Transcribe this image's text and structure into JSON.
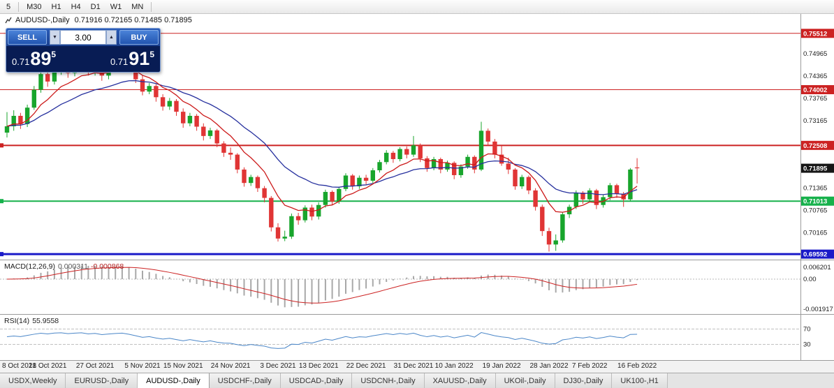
{
  "toolbar": {
    "timeframes": [
      "5",
      "M30",
      "H1",
      "H4",
      "D1",
      "W1",
      "MN"
    ]
  },
  "chart": {
    "header_symbol": "AUDUSD-,Daily",
    "header_ohlc": "0.71916 0.72165 0.71485 0.71895"
  },
  "trade_panel": {
    "sell_label": "SELL",
    "buy_label": "BUY",
    "volume": "3.00",
    "bid_prefix": "0.71",
    "bid_big": "89",
    "bid_sup": "5",
    "ask_prefix": "0.71",
    "ask_big": "91",
    "ask_sup": "5"
  },
  "macd_panel": {
    "label": "MACD(12,26,9)",
    "value_main": "0.000311",
    "value_signal": "-0.000868"
  },
  "rsi_panel": {
    "label": "RSI(14)",
    "value": "55.9558"
  },
  "tabs": {
    "active_index": 2,
    "items": [
      "USDX,Weekly",
      "EURUSD-,Daily",
      "AUDUSD-,Daily",
      "USDCHF-,Daily",
      "USDCAD-,Daily",
      "USDCNH-,Daily",
      "XAUUSD-,Daily",
      "UKOil-,Daily",
      "DJ30-,Daily",
      "UK100-,H1"
    ]
  },
  "chart_data": {
    "type": "candlestick",
    "symbol": "AUDUSD-",
    "timeframe": "Daily",
    "price_range": [
      0.6952,
      0.7592
    ],
    "up_color": "#18a52c",
    "down_color": "#e03535",
    "ma_fast": {
      "period": 8,
      "color": "#cc1a1a"
    },
    "ma_slow": {
      "period": 20,
      "color": "#26309e"
    },
    "current_price": {
      "value": 0.71895,
      "label": "0.71895",
      "badge_color": "#161616"
    },
    "price_ticks": [
      0.74965,
      0.74365,
      0.73765,
      0.73165,
      0.71365,
      0.70765,
      0.70165
    ],
    "hlines": [
      {
        "price": 0.75512,
        "color": "#cc2222",
        "width": 1
      },
      {
        "price": 0.74002,
        "color": "#cc2222",
        "width": 1
      },
      {
        "price": 0.72508,
        "color": "#cc2222",
        "width": 2
      },
      {
        "price": 0.71013,
        "color": "#16b14b",
        "width": 2
      },
      {
        "price": 0.69592,
        "color": "#1a1ac8",
        "width": 3
      }
    ],
    "macd": {
      "fast": 12,
      "slow": 26,
      "signal": 9,
      "hist_color": "#a8a8a8",
      "signal_color": "#cc2222",
      "axis_labels": [
        "0.006201",
        "0.00",
        "-0.001917"
      ]
    },
    "rsi": {
      "period": 14,
      "color": "#4a86c8",
      "levels": [
        70,
        30
      ]
    },
    "date_ticks": [
      {
        "i": 0,
        "label": "8 Oct 2021"
      },
      {
        "i": 6,
        "label": "18 Oct 2021"
      },
      {
        "i": 13,
        "label": "27 Oct 2021"
      },
      {
        "i": 20,
        "label": "5 Nov 2021"
      },
      {
        "i": 26,
        "label": "15 Nov 2021"
      },
      {
        "i": 33,
        "label": "24 Nov 2021"
      },
      {
        "i": 40,
        "label": "3 Dec 2021"
      },
      {
        "i": 46,
        "label": "13 Dec 2021"
      },
      {
        "i": 53,
        "label": "22 Dec 2021"
      },
      {
        "i": 60,
        "label": "31 Dec 2021"
      },
      {
        "i": 66,
        "label": "10 Jan 2022"
      },
      {
        "i": 73,
        "label": "19 Jan 2022"
      },
      {
        "i": 80,
        "label": "28 Jan 2022"
      },
      {
        "i": 86,
        "label": "7 Feb 2022"
      },
      {
        "i": 93,
        "label": "16 Feb 2022"
      }
    ],
    "candles": [
      [
        0.7285,
        0.734,
        0.7272,
        0.7302
      ],
      [
        0.7302,
        0.7345,
        0.729,
        0.733
      ],
      [
        0.733,
        0.7338,
        0.7295,
        0.7308
      ],
      [
        0.7308,
        0.736,
        0.73,
        0.7352
      ],
      [
        0.7352,
        0.741,
        0.7346,
        0.74
      ],
      [
        0.74,
        0.745,
        0.7392,
        0.7442
      ],
      [
        0.7442,
        0.7455,
        0.7408,
        0.7422
      ],
      [
        0.7422,
        0.7465,
        0.7414,
        0.7455
      ],
      [
        0.7455,
        0.748,
        0.744,
        0.7468
      ],
      [
        0.7468,
        0.7475,
        0.7432,
        0.7445
      ],
      [
        0.7445,
        0.7472,
        0.7436,
        0.7462
      ],
      [
        0.7462,
        0.7483,
        0.7452,
        0.7475
      ],
      [
        0.7475,
        0.748,
        0.7438,
        0.745
      ],
      [
        0.745,
        0.747,
        0.7438,
        0.7464
      ],
      [
        0.7464,
        0.7468,
        0.7424,
        0.7438
      ],
      [
        0.7438,
        0.7462,
        0.7428,
        0.7455
      ],
      [
        0.7455,
        0.7478,
        0.7446,
        0.747
      ],
      [
        0.747,
        0.7485,
        0.7458,
        0.7479
      ],
      [
        0.7479,
        0.7482,
        0.7446,
        0.7458
      ],
      [
        0.7458,
        0.7465,
        0.7418,
        0.7428
      ],
      [
        0.7428,
        0.7438,
        0.7385,
        0.7395
      ],
      [
        0.7395,
        0.7418,
        0.7388,
        0.741
      ],
      [
        0.741,
        0.7415,
        0.7368,
        0.738
      ],
      [
        0.738,
        0.7388,
        0.7344,
        0.7355
      ],
      [
        0.7355,
        0.7378,
        0.7346,
        0.737
      ],
      [
        0.737,
        0.7375,
        0.733,
        0.7341
      ],
      [
        0.7341,
        0.735,
        0.7298,
        0.731
      ],
      [
        0.731,
        0.7338,
        0.7302,
        0.733
      ],
      [
        0.733,
        0.7335,
        0.729,
        0.7301
      ],
      [
        0.7301,
        0.731,
        0.7264,
        0.7276
      ],
      [
        0.7276,
        0.7298,
        0.7268,
        0.7291
      ],
      [
        0.7291,
        0.7295,
        0.7246,
        0.7256
      ],
      [
        0.7256,
        0.7262,
        0.722,
        0.7231
      ],
      [
        0.7231,
        0.7245,
        0.7212,
        0.7226
      ],
      [
        0.7226,
        0.723,
        0.7176,
        0.7186
      ],
      [
        0.7186,
        0.7192,
        0.714,
        0.715
      ],
      [
        0.715,
        0.7172,
        0.7142,
        0.7166
      ],
      [
        0.7166,
        0.717,
        0.7126,
        0.7136
      ],
      [
        0.7136,
        0.7142,
        0.7098,
        0.711
      ],
      [
        0.711,
        0.7115,
        0.702,
        0.7031
      ],
      [
        0.7031,
        0.7042,
        0.6993,
        0.7001
      ],
      [
        0.7001,
        0.7022,
        0.6994,
        0.7006
      ],
      [
        0.7006,
        0.7068,
        0.7,
        0.7061
      ],
      [
        0.7061,
        0.707,
        0.7038,
        0.705
      ],
      [
        0.705,
        0.709,
        0.7044,
        0.7084
      ],
      [
        0.7084,
        0.7092,
        0.705,
        0.706
      ],
      [
        0.706,
        0.7098,
        0.7052,
        0.7091
      ],
      [
        0.7091,
        0.7132,
        0.7084,
        0.7126
      ],
      [
        0.7126,
        0.713,
        0.709,
        0.71
      ],
      [
        0.71,
        0.714,
        0.7094,
        0.7134
      ],
      [
        0.7134,
        0.7176,
        0.7128,
        0.717
      ],
      [
        0.717,
        0.7174,
        0.7132,
        0.7141
      ],
      [
        0.7141,
        0.717,
        0.7134,
        0.7164
      ],
      [
        0.7164,
        0.7172,
        0.7146,
        0.7156
      ],
      [
        0.7156,
        0.719,
        0.715,
        0.7184
      ],
      [
        0.7184,
        0.7212,
        0.7178,
        0.7206
      ],
      [
        0.7206,
        0.7238,
        0.72,
        0.7231
      ],
      [
        0.7231,
        0.7236,
        0.7204,
        0.7214
      ],
      [
        0.7214,
        0.7246,
        0.7208,
        0.7241
      ],
      [
        0.7241,
        0.7248,
        0.7216,
        0.7226
      ],
      [
        0.7226,
        0.7276,
        0.722,
        0.7251
      ],
      [
        0.7251,
        0.7256,
        0.7206,
        0.7216
      ],
      [
        0.7216,
        0.7222,
        0.718,
        0.719
      ],
      [
        0.719,
        0.722,
        0.7184,
        0.7214
      ],
      [
        0.7214,
        0.7218,
        0.7176,
        0.7186
      ],
      [
        0.7186,
        0.721,
        0.718,
        0.7204
      ],
      [
        0.7204,
        0.7208,
        0.716,
        0.7171
      ],
      [
        0.7171,
        0.72,
        0.7164,
        0.7194
      ],
      [
        0.7194,
        0.7226,
        0.7188,
        0.722
      ],
      [
        0.722,
        0.7224,
        0.7176,
        0.7186
      ],
      [
        0.7186,
        0.7314,
        0.7182,
        0.729
      ],
      [
        0.729,
        0.7296,
        0.725,
        0.7261
      ],
      [
        0.7261,
        0.7268,
        0.7216,
        0.7226
      ],
      [
        0.7226,
        0.725,
        0.7196,
        0.7202
      ],
      [
        0.7202,
        0.7218,
        0.7174,
        0.7186
      ],
      [
        0.7186,
        0.719,
        0.7132,
        0.7141
      ],
      [
        0.7141,
        0.7172,
        0.7134,
        0.7166
      ],
      [
        0.7166,
        0.717,
        0.712,
        0.713
      ],
      [
        0.713,
        0.7136,
        0.7076,
        0.7086
      ],
      [
        0.7086,
        0.7092,
        0.7008,
        0.7021
      ],
      [
        0.7021,
        0.703,
        0.6966,
        0.6985
      ],
      [
        0.6985,
        0.7012,
        0.6968,
        0.6996
      ],
      [
        0.6996,
        0.7072,
        0.699,
        0.7066
      ],
      [
        0.7066,
        0.7092,
        0.7056,
        0.7086
      ],
      [
        0.7086,
        0.713,
        0.708,
        0.7124
      ],
      [
        0.7124,
        0.7128,
        0.7094,
        0.7106
      ],
      [
        0.7106,
        0.7136,
        0.71,
        0.713
      ],
      [
        0.713,
        0.7134,
        0.708,
        0.7091
      ],
      [
        0.7091,
        0.7118,
        0.7084,
        0.7112
      ],
      [
        0.7112,
        0.715,
        0.7104,
        0.7144
      ],
      [
        0.7144,
        0.7148,
        0.711,
        0.7121
      ],
      [
        0.7121,
        0.7126,
        0.7086,
        0.7106
      ],
      [
        0.7106,
        0.719,
        0.71,
        0.7186
      ],
      [
        0.71916,
        0.72165,
        0.71485,
        0.71895
      ]
    ]
  }
}
